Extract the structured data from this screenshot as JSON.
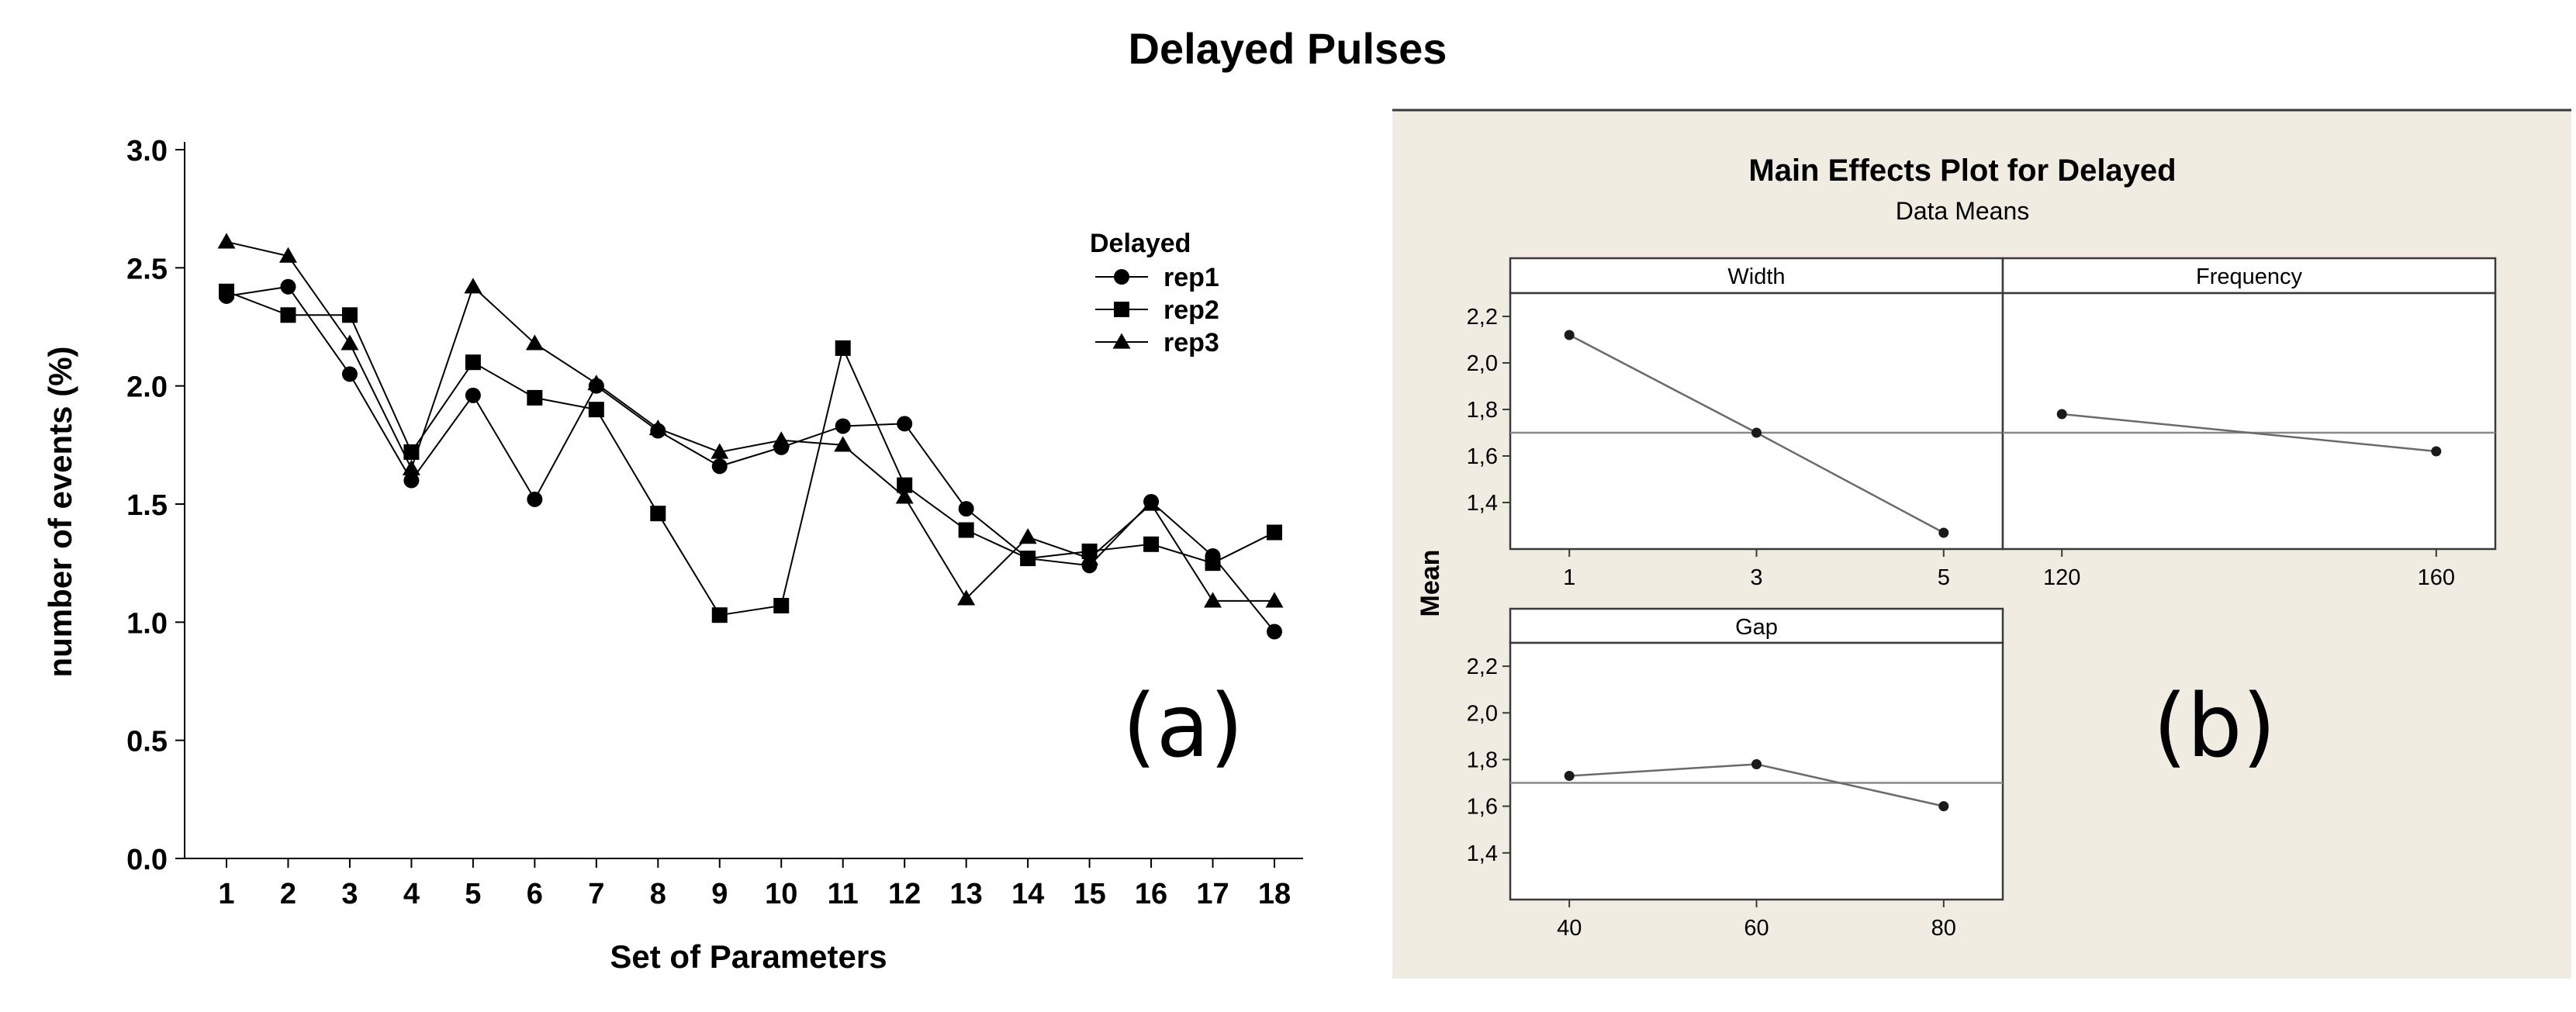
{
  "figure_title": "Delayed Pulses",
  "panel_a_label": "(a)",
  "panel_b_label": "(b)",
  "colors": {
    "ink": "#000000",
    "panel_bg": "#f0ece2",
    "strip_bg": "#ffffff",
    "frame": "#3a3a3a",
    "mean_line": "#8a8a8a",
    "point": "#1a1a1a"
  },
  "chart_data": [
    {
      "id": "a",
      "type": "line",
      "title": "",
      "xlabel": "Set of Parameters",
      "ylabel": "number of events (%)",
      "categories": [
        "1",
        "2",
        "3",
        "4",
        "5",
        "6",
        "7",
        "8",
        "9",
        "10",
        "11",
        "12",
        "13",
        "14",
        "15",
        "16",
        "17",
        "18"
      ],
      "y_ticks": [
        "0.0",
        "0.5",
        "1.0",
        "1.5",
        "2.0",
        "2.5",
        "3.0"
      ],
      "ylim": [
        0,
        3
      ],
      "legend_title": "Delayed",
      "legend_position": "top-right",
      "series": [
        {
          "name": "rep1",
          "marker": "circle",
          "values": [
            2.38,
            2.42,
            2.05,
            1.6,
            1.96,
            1.52,
            2.0,
            1.81,
            1.66,
            1.74,
            1.83,
            1.84,
            1.48,
            1.27,
            1.24,
            1.51,
            1.28,
            0.96
          ]
        },
        {
          "name": "rep2",
          "marker": "square",
          "values": [
            2.4,
            2.3,
            2.3,
            1.72,
            2.1,
            1.95,
            1.9,
            1.46,
            1.03,
            1.07,
            2.16,
            1.58,
            1.39,
            1.27,
            1.3,
            1.33,
            1.25,
            1.38
          ]
        },
        {
          "name": "rep3",
          "marker": "triangle",
          "values": [
            2.61,
            2.55,
            2.18,
            1.65,
            2.42,
            2.18,
            2.01,
            1.82,
            1.72,
            1.77,
            1.75,
            1.53,
            1.1,
            1.36,
            1.27,
            1.5,
            1.09,
            1.09
          ]
        }
      ]
    },
    {
      "id": "b",
      "type": "line",
      "title": "Main Effects Plot for Delayed",
      "subtitle": "Data Means",
      "ylabel": "Mean",
      "overall_mean": 1.7,
      "ylim": [
        1.2,
        2.3
      ],
      "y_ticks": [
        "1,4",
        "1,6",
        "1,8",
        "2,0",
        "2,2"
      ],
      "panels": [
        {
          "name": "Width",
          "x": [
            "1",
            "3",
            "5"
          ],
          "values": [
            2.12,
            1.7,
            1.27
          ]
        },
        {
          "name": "Frequency",
          "x": [
            "120",
            "160"
          ],
          "values": [
            1.78,
            1.62
          ]
        },
        {
          "name": "Gap",
          "x": [
            "40",
            "60",
            "80"
          ],
          "values": [
            1.73,
            1.78,
            1.6
          ]
        }
      ]
    }
  ]
}
